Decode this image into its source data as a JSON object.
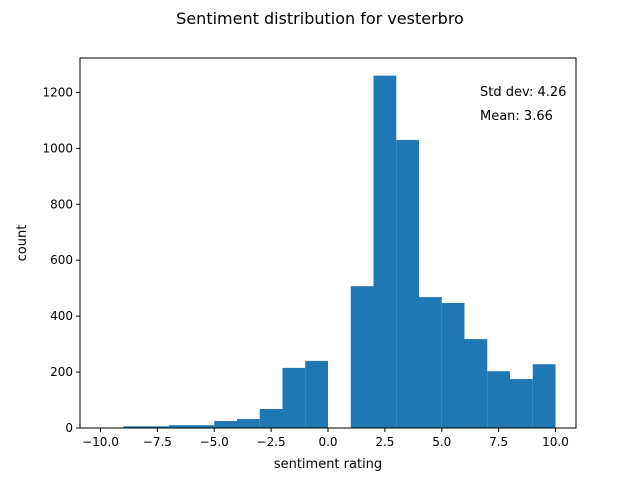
{
  "chart_data": {
    "type": "bar",
    "title": "Sentiment distribution for vesterbro",
    "xlabel": "sentiment rating",
    "ylabel": "count",
    "xlim": [
      -10.9,
      10.9
    ],
    "ylim": [
      0,
      1323
    ],
    "bar_color": "#1f77b4",
    "grid": false,
    "bins": [
      {
        "start": -9.0,
        "end": -8.0,
        "count": 6
      },
      {
        "start": -8.0,
        "end": -7.0,
        "count": 6
      },
      {
        "start": -7.0,
        "end": -6.0,
        "count": 10
      },
      {
        "start": -6.0,
        "end": -5.0,
        "count": 10
      },
      {
        "start": -5.0,
        "end": -4.0,
        "count": 25
      },
      {
        "start": -4.0,
        "end": -3.0,
        "count": 32
      },
      {
        "start": -3.0,
        "end": -2.0,
        "count": 68
      },
      {
        "start": -2.0,
        "end": -1.0,
        "count": 215
      },
      {
        "start": -1.0,
        "end": 0.0,
        "count": 240
      },
      {
        "start": 1.0,
        "end": 2.0,
        "count": 507
      },
      {
        "start": 2.0,
        "end": 3.0,
        "count": 1260
      },
      {
        "start": 3.0,
        "end": 4.0,
        "count": 1030
      },
      {
        "start": 4.0,
        "end": 5.0,
        "count": 468
      },
      {
        "start": 5.0,
        "end": 6.0,
        "count": 447
      },
      {
        "start": 6.0,
        "end": 7.0,
        "count": 318
      },
      {
        "start": 7.0,
        "end": 8.0,
        "count": 203
      },
      {
        "start": 8.0,
        "end": 9.0,
        "count": 175
      },
      {
        "start": 9.0,
        "end": 10.0,
        "count": 228
      }
    ],
    "xticks": [
      {
        "value": -10.0,
        "label": "−10.0"
      },
      {
        "value": -7.5,
        "label": "−7.5"
      },
      {
        "value": -5.0,
        "label": "−5.0"
      },
      {
        "value": -2.5,
        "label": "−2.5"
      },
      {
        "value": 0.0,
        "label": "0.0"
      },
      {
        "value": 2.5,
        "label": "2.5"
      },
      {
        "value": 5.0,
        "label": "5.0"
      },
      {
        "value": 7.5,
        "label": "7.5"
      },
      {
        "value": 10.0,
        "label": "10.0"
      }
    ],
    "yticks": [
      {
        "value": 0,
        "label": "0"
      },
      {
        "value": 200,
        "label": "200"
      },
      {
        "value": 400,
        "label": "400"
      },
      {
        "value": 600,
        "label": "600"
      },
      {
        "value": 800,
        "label": "800"
      },
      {
        "value": 1000,
        "label": "1000"
      },
      {
        "value": 1200,
        "label": "1200"
      }
    ],
    "annotations": [
      {
        "name": "annotation-std-dev",
        "text": "Std dev: 4.26"
      },
      {
        "name": "annotation-mean",
        "text": "Mean: 3.66"
      }
    ]
  }
}
